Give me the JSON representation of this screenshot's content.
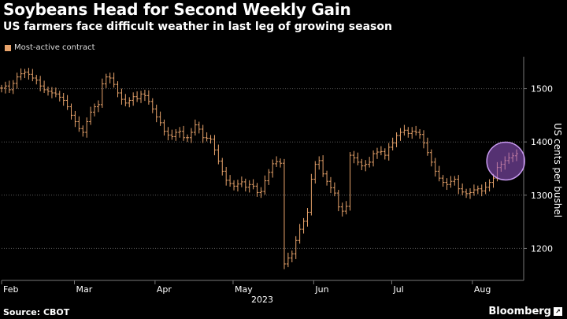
{
  "header": {
    "title": "Soybeans Head for Second Weekly Gain",
    "subtitle": "US farmers face difficult weather in last leg of growing season"
  },
  "footer": {
    "source": "Source: CBOT",
    "brand": "Bloomberg",
    "brand_icon": "bloomberg-terminal-icon"
  },
  "colors": {
    "background": "#000000",
    "series": "#e8a36b",
    "grid": "#5a5a5a",
    "highlight_fill": "#9b59d0",
    "highlight_stroke": "#c89af0"
  },
  "chart_data": {
    "type": "ohlc",
    "title": "Soybeans Head for Second Weekly Gain",
    "subtitle": "US farmers face difficult weather in last leg of growing season",
    "ylabel": "US cents per bushel",
    "xlabel": "2023",
    "ylim": [
      1140,
      1560
    ],
    "yticks": [
      1200,
      1300,
      1400,
      1500
    ],
    "grid": "horizontal dotted",
    "legend_position": "top-left",
    "series": [
      {
        "name": "Most-active contract",
        "values": [
          1501,
          1505,
          1498,
          1510,
          1522,
          1528,
          1531,
          1527,
          1520,
          1516,
          1505,
          1498,
          1495,
          1492,
          1490,
          1484,
          1478,
          1466,
          1450,
          1438,
          1425,
          1418,
          1438,
          1456,
          1466,
          1470,
          1509,
          1522,
          1520,
          1508,
          1492,
          1480,
          1473,
          1478,
          1485,
          1481,
          1490,
          1487,
          1476,
          1462,
          1447,
          1436,
          1420,
          1413,
          1410,
          1418,
          1420,
          1408,
          1408,
          1418,
          1432,
          1424,
          1408,
          1407,
          1405,
          1385,
          1364,
          1345,
          1328,
          1322,
          1317,
          1321,
          1325,
          1315,
          1320,
          1317,
          1305,
          1307,
          1327,
          1343,
          1359,
          1363,
          1360,
          1171,
          1182,
          1190,
          1215,
          1236,
          1251,
          1268,
          1330,
          1358,
          1365,
          1340,
          1326,
          1314,
          1304,
          1278,
          1270,
          1279,
          1375,
          1370,
          1362,
          1355,
          1358,
          1362,
          1378,
          1381,
          1382,
          1375,
          1390,
          1398,
          1412,
          1418,
          1422,
          1416,
          1420,
          1418,
          1414,
          1398,
          1380,
          1362,
          1345,
          1332,
          1324,
          1320,
          1326,
          1330,
          1312,
          1306,
          1303,
          1305,
          1310,
          1312,
          1308,
          1315,
          1324,
          1332,
          1352,
          1358,
          1365,
          1370,
          1374,
          1378
        ]
      }
    ],
    "x": {
      "start": "2023-02-01",
      "end": "2023-08-18",
      "tick_labels": [
        "Feb",
        "Mar",
        "Apr",
        "May",
        "Jun",
        "Jul",
        "Aug"
      ],
      "year_label": "2023"
    },
    "annotations": [
      {
        "type": "circle",
        "target": "latest price",
        "color": "purple"
      }
    ]
  }
}
